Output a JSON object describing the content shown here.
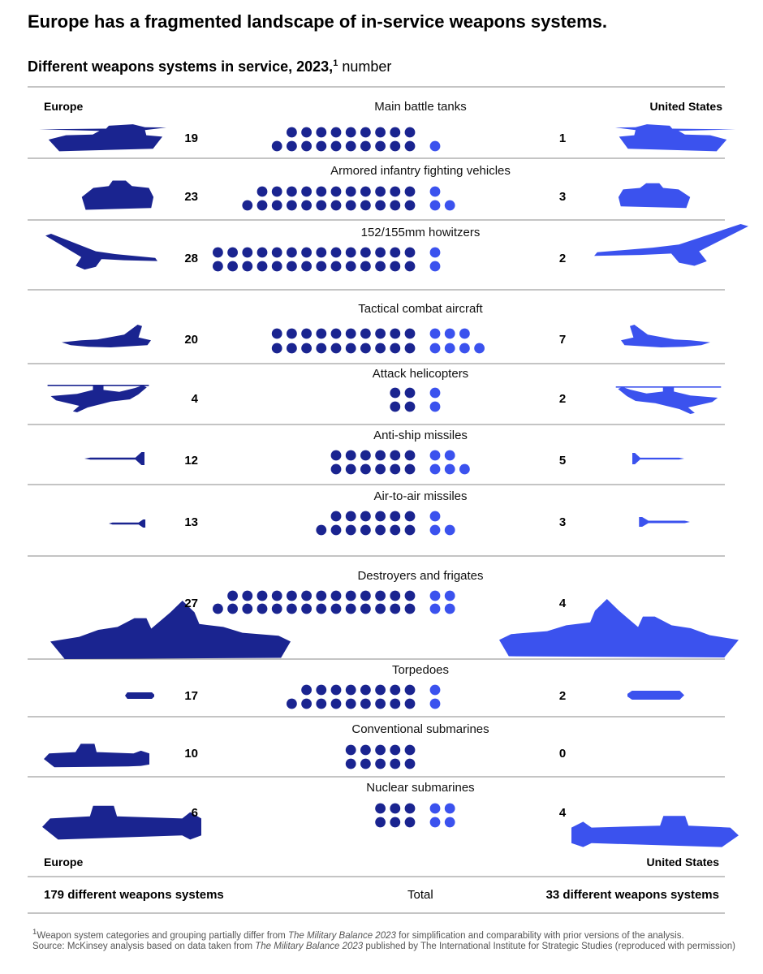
{
  "title": "Europe has a fragmented landscape of in-service weapons systems.",
  "subtitle": {
    "main": "Different weapons systems in service, 2023,",
    "note_marker": "1",
    "unit": "number"
  },
  "colors": {
    "europe": "#1a2490",
    "us": "#3b52ee",
    "rule": "#888888"
  },
  "icons": [
    "tank-icon",
    "ifv-icon",
    "howitzer-icon",
    "aircraft-icon",
    "helicopter-icon",
    "anti-ship-missile-icon",
    "air-to-air-missile-icon",
    "warship-icon",
    "torpedo-icon",
    "submarine-icon",
    "nuclear-submarine-icon"
  ],
  "chart_data": {
    "type": "dot-plot",
    "title": "Different weapons systems in service, 2023",
    "left_label": "Europe",
    "right_label": "United States",
    "series": [
      {
        "name": "Europe",
        "values": [
          19,
          23,
          28,
          20,
          4,
          12,
          13,
          27,
          17,
          10,
          6
        ]
      },
      {
        "name": "United States",
        "values": [
          1,
          3,
          2,
          7,
          2,
          5,
          3,
          4,
          2,
          0,
          4
        ]
      }
    ],
    "categories": [
      "Main battle tanks",
      "Armored infantry fighting vehicles",
      "152/155mm howitzers",
      "Tactical combat aircraft",
      "Attack helicopters",
      "Anti-ship missiles",
      "Air-to-air missiles",
      "Destroyers and frigates",
      "Torpedoes",
      "Conventional submarines",
      "Nuclear submarines"
    ]
  },
  "totals": {
    "label": "Total",
    "europe": "179 different weapons systems",
    "us": "33 different weapons systems"
  },
  "footnote": {
    "marker": "1",
    "line1_a": "Weapon system categories and grouping partially differ from ",
    "line1_ital": "The Military Balance 2023",
    "line1_b": " for simplification and comparability with prior versions of the analysis.",
    "line2_a": "Source: McKinsey analysis based on data taken from ",
    "line2_ital": "The Military Balance 2023",
    "line2_b": " published by The International Institute for Strategic Studies (reproduced with permission)"
  }
}
